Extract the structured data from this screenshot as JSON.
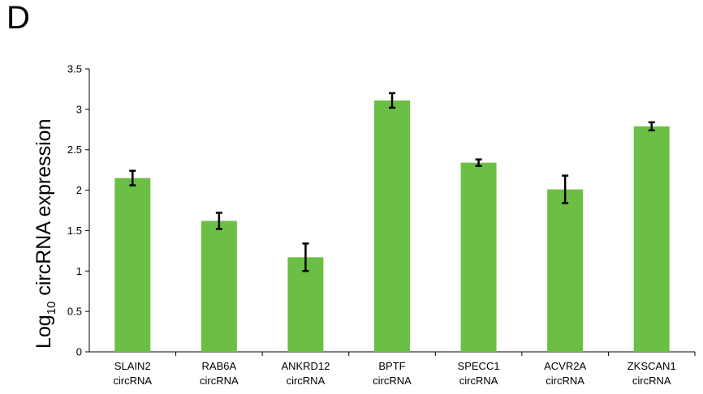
{
  "panel_label": "D",
  "chart_data": {
    "type": "bar",
    "ylabel_main": "Log",
    "ylabel_sub": "10",
    "ylabel_rest": " circRNA expression",
    "ylim": [
      0,
      3.5
    ],
    "yticks": [
      "0",
      "0.5",
      "1",
      "1.5",
      "2",
      "2.5",
      "3",
      "3.5"
    ],
    "ytick_values": [
      0,
      0.5,
      1,
      1.5,
      2,
      2.5,
      3,
      3.5
    ],
    "categories": [
      [
        "SLAIN2",
        "circRNA"
      ],
      [
        "RAB6A",
        "circRNA"
      ],
      [
        "ANKRD12",
        "circRNA"
      ],
      [
        "BPTF",
        "circRNA"
      ],
      [
        "SPECC1",
        "circRNA"
      ],
      [
        "ACVR2A",
        "circRNA"
      ],
      [
        "ZKSCAN1",
        "circRNA"
      ]
    ],
    "values": [
      2.15,
      1.62,
      1.17,
      3.11,
      2.34,
      2.01,
      2.79
    ],
    "errors": [
      0.09,
      0.1,
      0.17,
      0.09,
      0.04,
      0.17,
      0.05
    ],
    "bar_color": "#6cbf45",
    "grid": false,
    "legend": "none"
  }
}
